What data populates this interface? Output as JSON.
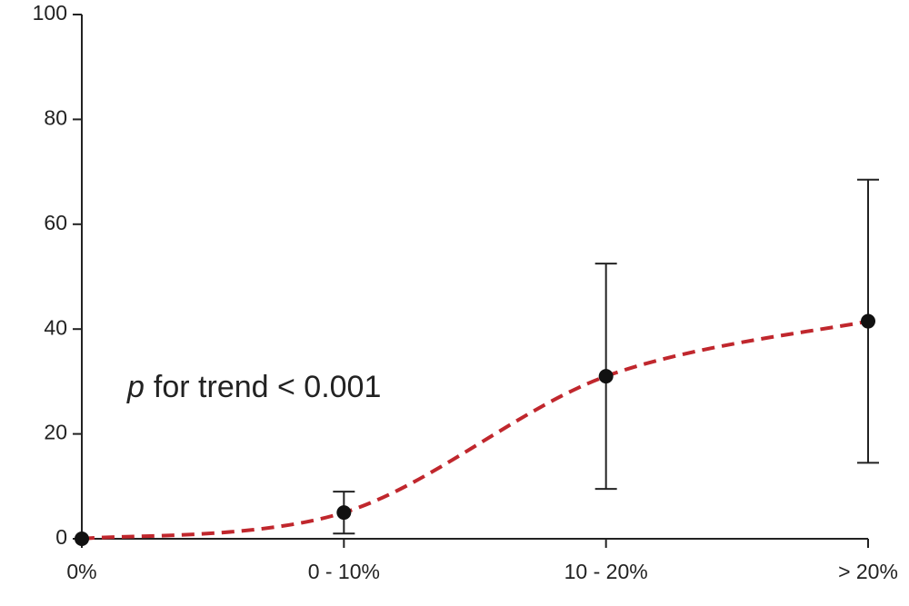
{
  "chart_data": {
    "type": "line",
    "categories": [
      "0%",
      "0 - 10%",
      "10 - 20%",
      "> 20%"
    ],
    "values": [
      0,
      5,
      31,
      41.5
    ],
    "error_lower": [
      null,
      1,
      9.5,
      14.5
    ],
    "error_upper": [
      null,
      9,
      52.5,
      68.5
    ],
    "line_color": "#c0272d",
    "marker_color": "#111111",
    "ylim": [
      0,
      100
    ],
    "yticks": [
      0,
      20,
      40,
      60,
      80,
      100
    ],
    "annotation_italic": "p",
    "annotation": "for trend < 0.001"
  }
}
